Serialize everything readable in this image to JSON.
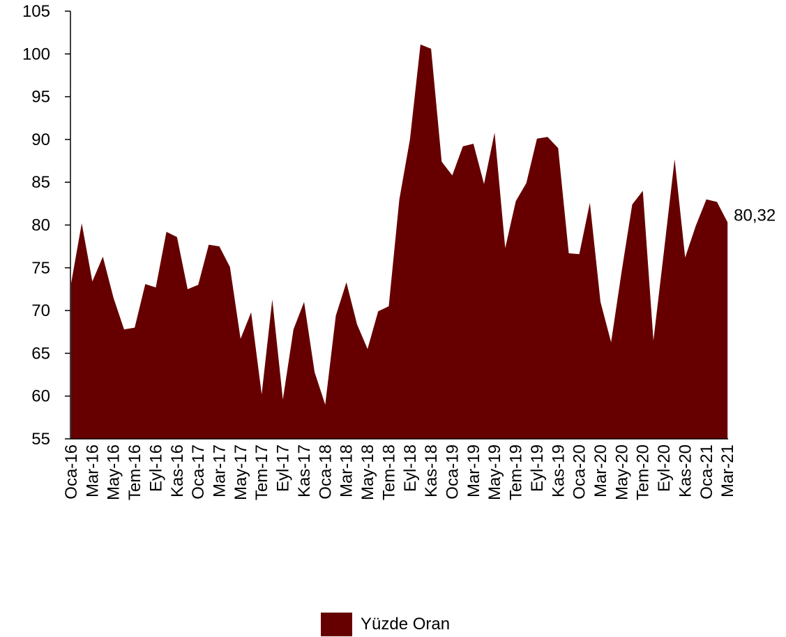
{
  "chart_data": {
    "type": "area",
    "title": "",
    "xlabel": "",
    "ylabel": "",
    "ylim": [
      55,
      105
    ],
    "yticks": [
      55,
      60,
      65,
      70,
      75,
      80,
      85,
      90,
      95,
      100,
      105
    ],
    "grid": false,
    "legend_position": "bottom-center",
    "fill_color": "#660000",
    "x_tick_labels": [
      "Oca-16",
      "Mar-16",
      "May-16",
      "Tem-16",
      "Eyl-16",
      "Kas-16",
      "Oca-17",
      "Mar-17",
      "May-17",
      "Tem-17",
      "Eyl-17",
      "Kas-17",
      "Oca-18",
      "Mar-18",
      "May-18",
      "Tem-18",
      "Eyl-18",
      "Kas-18",
      "Oca-19",
      "Mar-19",
      "May-19",
      "Tem-19",
      "Eyl-19",
      "Kas-19",
      "Oca-20",
      "Mar-20",
      "May-20",
      "Tem-20",
      "Eyl-20",
      "Kas-20",
      "Oca-21",
      "Mar-21"
    ],
    "series": [
      {
        "name": "Yüzde Oran",
        "values": [
          73.2,
          80.2,
          73.4,
          76.3,
          71.5,
          67.8,
          68.0,
          73.1,
          72.7,
          79.2,
          78.6,
          72.5,
          73.0,
          77.7,
          77.5,
          75.1,
          66.7,
          69.8,
          60.2,
          71.3,
          59.6,
          67.8,
          71.0,
          62.8,
          59.0,
          69.4,
          73.3,
          68.4,
          65.5,
          69.9,
          70.5,
          83.0,
          90.0,
          101.1,
          100.6,
          87.4,
          85.8,
          89.2,
          89.5,
          84.8,
          90.8,
          77.3,
          82.8,
          84.9,
          90.1,
          90.3,
          89.0,
          76.7,
          76.6,
          82.6,
          71.0,
          66.3,
          74.6,
          82.4,
          84.0,
          66.5,
          77.0,
          87.7,
          76.2,
          79.9,
          83.0,
          82.7,
          80.32
        ]
      }
    ],
    "annotations": [
      {
        "text": "80,32"
      }
    ]
  },
  "legend": {
    "label": "Yüzde Oran",
    "color": "#660000"
  }
}
